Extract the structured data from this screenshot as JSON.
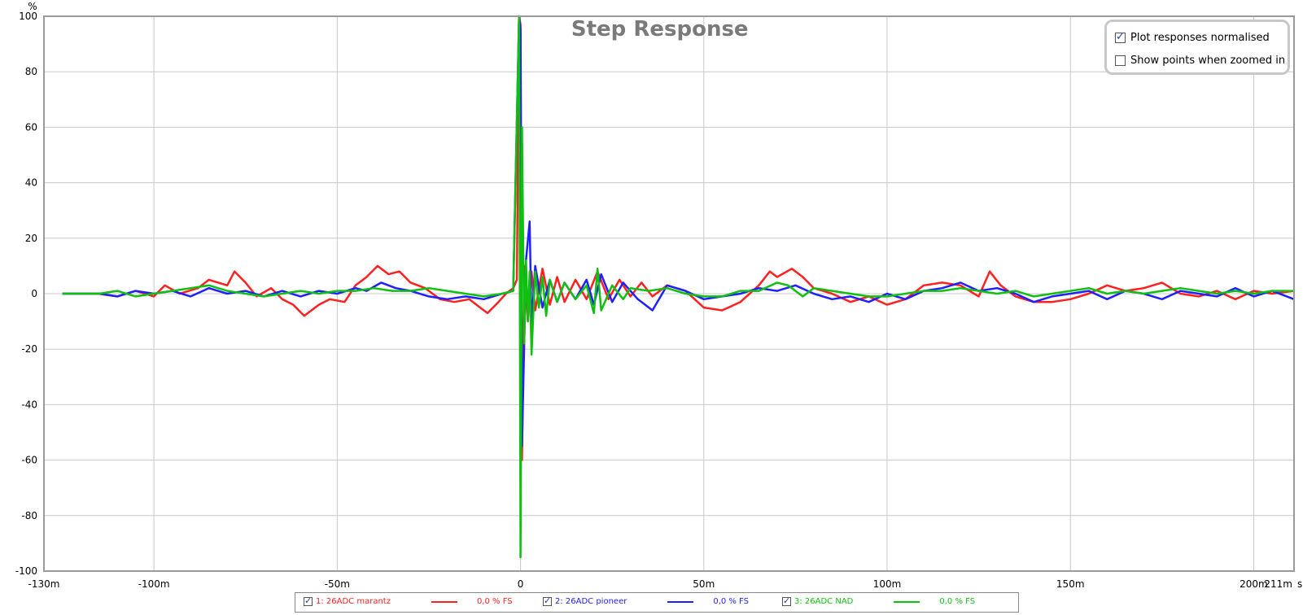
{
  "chart_data": {
    "type": "line",
    "title": "Step Response",
    "ylabel": "%",
    "xlabel": "s",
    "xlim": [
      -0.13,
      0.211
    ],
    "ylim": [
      -100,
      100
    ],
    "grid": true,
    "x_ticks": [
      {
        "value": -0.13,
        "label": "-130m"
      },
      {
        "value": -0.1,
        "label": "-100m"
      },
      {
        "value": -0.05,
        "label": "-50m"
      },
      {
        "value": 0,
        "label": "0"
      },
      {
        "value": 0.05,
        "label": "50m"
      },
      {
        "value": 0.1,
        "label": "100m"
      },
      {
        "value": 0.15,
        "label": "150m"
      },
      {
        "value": 0.2,
        "label": "200m"
      },
      {
        "value": 0.211,
        "label": "211m"
      }
    ],
    "y_ticks": [
      100,
      80,
      60,
      40,
      20,
      0,
      -20,
      -40,
      -60,
      -80,
      -100
    ],
    "series": [
      {
        "name": "1: 26ADC marantz",
        "value_text": "0,0 % FS",
        "color": "#ff2020",
        "enabled": true,
        "points": [
          [
            -0.125,
            0
          ],
          [
            -0.115,
            0
          ],
          [
            -0.11,
            -1
          ],
          [
            -0.105,
            1
          ],
          [
            -0.1,
            -1
          ],
          [
            -0.097,
            3
          ],
          [
            -0.093,
            0
          ],
          [
            -0.088,
            2
          ],
          [
            -0.085,
            5
          ],
          [
            -0.08,
            3
          ],
          [
            -0.078,
            8
          ],
          [
            -0.075,
            4
          ],
          [
            -0.072,
            -1
          ],
          [
            -0.068,
            2
          ],
          [
            -0.065,
            -2
          ],
          [
            -0.062,
            -4
          ],
          [
            -0.059,
            -8
          ],
          [
            -0.055,
            -4
          ],
          [
            -0.052,
            -2
          ],
          [
            -0.048,
            -3
          ],
          [
            -0.045,
            3
          ],
          [
            -0.042,
            6
          ],
          [
            -0.039,
            10
          ],
          [
            -0.036,
            7
          ],
          [
            -0.033,
            8
          ],
          [
            -0.03,
            4
          ],
          [
            -0.026,
            2
          ],
          [
            -0.022,
            -2
          ],
          [
            -0.018,
            -3
          ],
          [
            -0.014,
            -2
          ],
          [
            -0.011,
            -5
          ],
          [
            -0.009,
            -7
          ],
          [
            -0.006,
            -3
          ],
          [
            -0.004,
            0
          ],
          [
            -0.002,
            2
          ],
          [
            -0.001,
            5
          ],
          [
            -0.0004,
            100
          ],
          [
            0,
            97
          ],
          [
            0.0004,
            -60
          ],
          [
            0.001,
            10
          ],
          [
            0.002,
            -10
          ],
          [
            0.003,
            8
          ],
          [
            0.004,
            -6
          ],
          [
            0.006,
            9
          ],
          [
            0.008,
            -4
          ],
          [
            0.01,
            6
          ],
          [
            0.012,
            -3
          ],
          [
            0.015,
            5
          ],
          [
            0.018,
            -2
          ],
          [
            0.021,
            8
          ],
          [
            0.024,
            -2
          ],
          [
            0.027,
            5
          ],
          [
            0.03,
            -1
          ],
          [
            0.033,
            4
          ],
          [
            0.036,
            -1
          ],
          [
            0.04,
            3
          ],
          [
            0.045,
            1
          ],
          [
            0.05,
            -5
          ],
          [
            0.055,
            -6
          ],
          [
            0.06,
            -3
          ],
          [
            0.065,
            3
          ],
          [
            0.068,
            8
          ],
          [
            0.07,
            6
          ],
          [
            0.074,
            9
          ],
          [
            0.077,
            6
          ],
          [
            0.08,
            2
          ],
          [
            0.085,
            0
          ],
          [
            0.09,
            -3
          ],
          [
            0.095,
            -1
          ],
          [
            0.1,
            -4
          ],
          [
            0.105,
            -2
          ],
          [
            0.11,
            3
          ],
          [
            0.115,
            4
          ],
          [
            0.12,
            3
          ],
          [
            0.125,
            -1
          ],
          [
            0.128,
            8
          ],
          [
            0.131,
            3
          ],
          [
            0.135,
            -1
          ],
          [
            0.14,
            -3
          ],
          [
            0.145,
            -3
          ],
          [
            0.15,
            -2
          ],
          [
            0.155,
            0
          ],
          [
            0.16,
            3
          ],
          [
            0.165,
            1
          ],
          [
            0.17,
            2
          ],
          [
            0.175,
            4
          ],
          [
            0.18,
            0
          ],
          [
            0.185,
            -1
          ],
          [
            0.19,
            1
          ],
          [
            0.195,
            -2
          ],
          [
            0.2,
            1
          ],
          [
            0.205,
            0
          ],
          [
            0.211,
            1
          ]
        ]
      },
      {
        "name": "2: 26ADC pioneer",
        "value_text": "0,0 % FS",
        "color": "#2020ff",
        "enabled": true,
        "points": [
          [
            -0.125,
            0
          ],
          [
            -0.115,
            0
          ],
          [
            -0.11,
            -1
          ],
          [
            -0.105,
            1
          ],
          [
            -0.1,
            0
          ],
          [
            -0.095,
            1
          ],
          [
            -0.09,
            -1
          ],
          [
            -0.085,
            2
          ],
          [
            -0.08,
            0
          ],
          [
            -0.075,
            1
          ],
          [
            -0.07,
            -1
          ],
          [
            -0.065,
            1
          ],
          [
            -0.06,
            -1
          ],
          [
            -0.055,
            1
          ],
          [
            -0.05,
            0
          ],
          [
            -0.045,
            2
          ],
          [
            -0.042,
            1
          ],
          [
            -0.038,
            4
          ],
          [
            -0.034,
            2
          ],
          [
            -0.03,
            1
          ],
          [
            -0.025,
            -1
          ],
          [
            -0.02,
            -2
          ],
          [
            -0.015,
            -1
          ],
          [
            -0.01,
            -2
          ],
          [
            -0.005,
            0
          ],
          [
            -0.002,
            1
          ],
          [
            -0.0004,
            100
          ],
          [
            0,
            95
          ],
          [
            0.0004,
            -55
          ],
          [
            0.0015,
            12
          ],
          [
            0.0025,
            26
          ],
          [
            0.003,
            -12
          ],
          [
            0.004,
            10
          ],
          [
            0.006,
            -5
          ],
          [
            0.008,
            5
          ],
          [
            0.01,
            -3
          ],
          [
            0.012,
            4
          ],
          [
            0.015,
            -2
          ],
          [
            0.018,
            5
          ],
          [
            0.02,
            -4
          ],
          [
            0.022,
            7
          ],
          [
            0.025,
            -3
          ],
          [
            0.028,
            4
          ],
          [
            0.032,
            -2
          ],
          [
            0.036,
            -6
          ],
          [
            0.04,
            3
          ],
          [
            0.045,
            1
          ],
          [
            0.05,
            -2
          ],
          [
            0.055,
            -1
          ],
          [
            0.06,
            0
          ],
          [
            0.065,
            2
          ],
          [
            0.07,
            1
          ],
          [
            0.075,
            3
          ],
          [
            0.08,
            0
          ],
          [
            0.085,
            -2
          ],
          [
            0.09,
            -1
          ],
          [
            0.095,
            -3
          ],
          [
            0.1,
            0
          ],
          [
            0.105,
            -2
          ],
          [
            0.11,
            1
          ],
          [
            0.115,
            2
          ],
          [
            0.12,
            4
          ],
          [
            0.125,
            1
          ],
          [
            0.13,
            2
          ],
          [
            0.135,
            0
          ],
          [
            0.14,
            -3
          ],
          [
            0.145,
            -1
          ],
          [
            0.15,
            0
          ],
          [
            0.155,
            1
          ],
          [
            0.16,
            -2
          ],
          [
            0.165,
            1
          ],
          [
            0.17,
            0
          ],
          [
            0.175,
            -2
          ],
          [
            0.18,
            1
          ],
          [
            0.185,
            0
          ],
          [
            0.19,
            -1
          ],
          [
            0.195,
            2
          ],
          [
            0.2,
            -1
          ],
          [
            0.205,
            1
          ],
          [
            0.211,
            -2
          ]
        ]
      },
      {
        "name": "3: 26ADC NAD",
        "value_text": "0,0 % FS",
        "color": "#10c010",
        "enabled": true,
        "points": [
          [
            -0.125,
            0
          ],
          [
            -0.115,
            0
          ],
          [
            -0.11,
            1
          ],
          [
            -0.105,
            -1
          ],
          [
            -0.1,
            0
          ],
          [
            -0.095,
            1
          ],
          [
            -0.09,
            2
          ],
          [
            -0.085,
            3
          ],
          [
            -0.08,
            1
          ],
          [
            -0.075,
            0
          ],
          [
            -0.07,
            -1
          ],
          [
            -0.065,
            0
          ],
          [
            -0.06,
            1
          ],
          [
            -0.055,
            0
          ],
          [
            -0.05,
            1
          ],
          [
            -0.045,
            1
          ],
          [
            -0.04,
            2
          ],
          [
            -0.035,
            1
          ],
          [
            -0.03,
            1
          ],
          [
            -0.025,
            2
          ],
          [
            -0.02,
            1
          ],
          [
            -0.015,
            0
          ],
          [
            -0.01,
            -1
          ],
          [
            -0.005,
            0
          ],
          [
            -0.002,
            1
          ],
          [
            -0.0004,
            100
          ],
          [
            0,
            -95
          ],
          [
            0.0004,
            60
          ],
          [
            0.001,
            -18
          ],
          [
            0.0015,
            12
          ],
          [
            0.002,
            -10
          ],
          [
            0.0025,
            8
          ],
          [
            0.003,
            -22
          ],
          [
            0.004,
            8
          ],
          [
            0.005,
            -5
          ],
          [
            0.006,
            6
          ],
          [
            0.007,
            -8
          ],
          [
            0.008,
            5
          ],
          [
            0.01,
            -3
          ],
          [
            0.012,
            4
          ],
          [
            0.015,
            -2
          ],
          [
            0.018,
            3
          ],
          [
            0.02,
            -7
          ],
          [
            0.021,
            9
          ],
          [
            0.022,
            -6
          ],
          [
            0.025,
            3
          ],
          [
            0.028,
            -2
          ],
          [
            0.03,
            2
          ],
          [
            0.035,
            1
          ],
          [
            0.04,
            2
          ],
          [
            0.045,
            0
          ],
          [
            0.05,
            -1
          ],
          [
            0.055,
            -1
          ],
          [
            0.06,
            1
          ],
          [
            0.065,
            1
          ],
          [
            0.07,
            4
          ],
          [
            0.073,
            3
          ],
          [
            0.077,
            -1
          ],
          [
            0.08,
            2
          ],
          [
            0.085,
            1
          ],
          [
            0.09,
            0
          ],
          [
            0.095,
            -1
          ],
          [
            0.1,
            -1
          ],
          [
            0.105,
            0
          ],
          [
            0.11,
            1
          ],
          [
            0.115,
            1
          ],
          [
            0.12,
            2
          ],
          [
            0.125,
            1
          ],
          [
            0.13,
            0
          ],
          [
            0.135,
            1
          ],
          [
            0.14,
            -1
          ],
          [
            0.145,
            0
          ],
          [
            0.15,
            1
          ],
          [
            0.155,
            2
          ],
          [
            0.16,
            0
          ],
          [
            0.165,
            1
          ],
          [
            0.17,
            0
          ],
          [
            0.175,
            1
          ],
          [
            0.18,
            2
          ],
          [
            0.185,
            1
          ],
          [
            0.19,
            0
          ],
          [
            0.195,
            1
          ],
          [
            0.2,
            0
          ],
          [
            0.205,
            1
          ],
          [
            0.211,
            1
          ]
        ]
      }
    ],
    "legend_placement": "bottom"
  },
  "options": {
    "normalised": {
      "label": "Plot responses normalised",
      "checked": true
    },
    "show_points": {
      "label": "Show points when zoomed in",
      "checked": false
    }
  }
}
